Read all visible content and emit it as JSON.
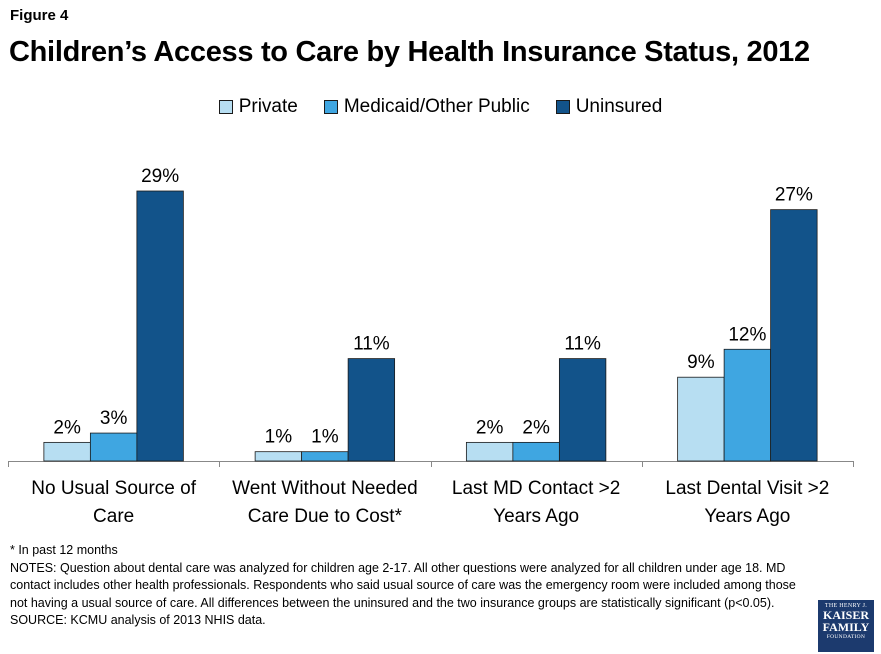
{
  "figure_label": "Figure 4",
  "chart_data": {
    "type": "bar",
    "title": "Children’s Access to Care by Health Insurance Status, 2012",
    "categories": [
      [
        "No Usual Source of",
        "Care"
      ],
      [
        "Went Without Needed",
        "Care Due to Cost*"
      ],
      [
        "Last MD Contact >2",
        "Years Ago"
      ],
      [
        "Last Dental Visit >2",
        "Years Ago"
      ]
    ],
    "series": [
      {
        "name": "Private",
        "color": "#b7def2",
        "values": [
          2,
          1,
          2,
          9
        ],
        "labels": [
          "2%",
          "1%",
          "2%",
          "9%"
        ]
      },
      {
        "name": "Medicaid/Other Public",
        "color": "#3fa6e1",
        "values": [
          3,
          1,
          2,
          12
        ],
        "labels": [
          "3%",
          "1%",
          "2%",
          "12%"
        ]
      },
      {
        "name": "Uninsured",
        "color": "#12538a",
        "values": [
          29,
          11,
          11,
          27
        ],
        "labels": [
          "29%",
          "11%",
          "11%",
          "27%"
        ]
      }
    ],
    "ylim": [
      0,
      34
    ],
    "legend_position": "top",
    "grid": false
  },
  "notes": {
    "footnote": "* In past 12 months",
    "notes_text": "NOTES: Question about dental care was analyzed for children age 2-17. All other questions were analyzed for all children under age 18.  MD contact includes other health professionals. Respondents who said usual source of care was the emergency room were included among those not having a usual source of care. All differences between the uninsured and the two insurance groups are statistically significant (p<0.05).",
    "source": "SOURCE: KCMU analysis of 2013 NHIS data."
  },
  "logo": {
    "top": "THE HENRY J.",
    "line1": "KAISER",
    "line2": "FAMILY",
    "bottom": "FOUNDATION"
  }
}
